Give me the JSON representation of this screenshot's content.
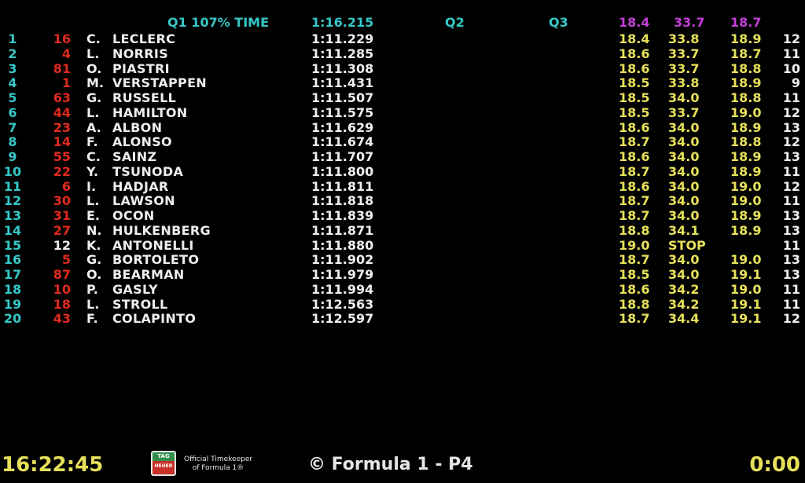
{
  "header": {
    "q1_label": "Q1 107% TIME",
    "q1_time": "1:16.215",
    "q2_label": "Q2",
    "q3_label": "Q3",
    "best_s1": "18.4",
    "best_s2": "33.7",
    "best_s3": "18.7"
  },
  "rows": [
    {
      "pos": "1",
      "num": "16",
      "ini": "C.",
      "name": "LECLERC",
      "time": "1:11.229",
      "s1": "18.4",
      "s2": "33.8",
      "s3": "18.9",
      "laps": "12",
      "num_color": "#e02a1e"
    },
    {
      "pos": "2",
      "num": "4",
      "ini": "L.",
      "name": "NORRIS",
      "time": "1:11.285",
      "s1": "18.6",
      "s2": "33.7",
      "s3": "18.7",
      "laps": "11",
      "num_color": "#e02a1e"
    },
    {
      "pos": "3",
      "num": "81",
      "ini": "O.",
      "name": "PIASTRI",
      "time": "1:11.308",
      "s1": "18.6",
      "s2": "33.7",
      "s3": "18.8",
      "laps": "10",
      "num_color": "#e02a1e"
    },
    {
      "pos": "4",
      "num": "1",
      "ini": "M.",
      "name": "VERSTAPPEN",
      "time": "1:11.431",
      "s1": "18.5",
      "s2": "33.8",
      "s3": "18.9",
      "laps": "9",
      "num_color": "#e02a1e"
    },
    {
      "pos": "5",
      "num": "63",
      "ini": "G.",
      "name": "RUSSELL",
      "time": "1:11.507",
      "s1": "18.5",
      "s2": "34.0",
      "s3": "18.8",
      "laps": "11",
      "num_color": "#e02a1e"
    },
    {
      "pos": "6",
      "num": "44",
      "ini": "L.",
      "name": "HAMILTON",
      "time": "1:11.575",
      "s1": "18.5",
      "s2": "33.7",
      "s3": "19.0",
      "laps": "12",
      "num_color": "#e02a1e"
    },
    {
      "pos": "7",
      "num": "23",
      "ini": "A.",
      "name": "ALBON",
      "time": "1:11.629",
      "s1": "18.6",
      "s2": "34.0",
      "s3": "18.9",
      "laps": "13",
      "num_color": "#e02a1e"
    },
    {
      "pos": "8",
      "num": "14",
      "ini": "F.",
      "name": "ALONSO",
      "time": "1:11.674",
      "s1": "18.7",
      "s2": "34.0",
      "s3": "18.8",
      "laps": "12",
      "num_color": "#e02a1e"
    },
    {
      "pos": "9",
      "num": "55",
      "ini": "C.",
      "name": "SAINZ",
      "time": "1:11.707",
      "s1": "18.6",
      "s2": "34.0",
      "s3": "18.9",
      "laps": "13",
      "num_color": "#e02a1e"
    },
    {
      "pos": "10",
      "num": "22",
      "ini": "Y.",
      "name": "TSUNODA",
      "time": "1:11.800",
      "s1": "18.7",
      "s2": "34.0",
      "s3": "18.9",
      "laps": "11",
      "num_color": "#e02a1e"
    },
    {
      "pos": "11",
      "num": "6",
      "ini": "I.",
      "name": "HADJAR",
      "time": "1:11.811",
      "s1": "18.6",
      "s2": "34.0",
      "s3": "19.0",
      "laps": "12",
      "num_color": "#e02a1e"
    },
    {
      "pos": "12",
      "num": "30",
      "ini": "L.",
      "name": "LAWSON",
      "time": "1:11.818",
      "s1": "18.7",
      "s2": "34.0",
      "s3": "19.0",
      "laps": "11",
      "num_color": "#e02a1e"
    },
    {
      "pos": "13",
      "num": "31",
      "ini": "E.",
      "name": "OCON",
      "time": "1:11.839",
      "s1": "18.7",
      "s2": "34.0",
      "s3": "18.9",
      "laps": "13",
      "num_color": "#e02a1e"
    },
    {
      "pos": "14",
      "num": "27",
      "ini": "N.",
      "name": "HULKENBERG",
      "time": "1:11.871",
      "s1": "18.8",
      "s2": "34.1",
      "s3": "18.9",
      "laps": "13",
      "num_color": "#e02a1e"
    },
    {
      "pos": "15",
      "num": "12",
      "ini": "K.",
      "name": "ANTONELLI",
      "time": "1:11.880",
      "s1": "19.0",
      "s2": "STOP",
      "s3": "",
      "laps": "11",
      "num_color": "#eeeeee"
    },
    {
      "pos": "16",
      "num": "5",
      "ini": "G.",
      "name": "BORTOLETO",
      "time": "1:11.902",
      "s1": "18.7",
      "s2": "34.0",
      "s3": "19.0",
      "laps": "13",
      "num_color": "#e02a1e"
    },
    {
      "pos": "17",
      "num": "87",
      "ini": "O.",
      "name": "BEARMAN",
      "time": "1:11.979",
      "s1": "18.5",
      "s2": "34.0",
      "s3": "19.1",
      "laps": "13",
      "num_color": "#e02a1e"
    },
    {
      "pos": "18",
      "num": "10",
      "ini": "P.",
      "name": "GASLY",
      "time": "1:11.994",
      "s1": "18.6",
      "s2": "34.2",
      "s3": "19.0",
      "laps": "11",
      "num_color": "#e02a1e"
    },
    {
      "pos": "19",
      "num": "18",
      "ini": "L.",
      "name": "STROLL",
      "time": "1:12.563",
      "s1": "18.8",
      "s2": "34.2",
      "s3": "19.1",
      "laps": "11",
      "num_color": "#e02a1e"
    },
    {
      "pos": "20",
      "num": "43",
      "ini": "F.",
      "name": "COLAPINTO",
      "time": "1:12.597",
      "s1": "18.7",
      "s2": "34.4",
      "s3": "19.1",
      "laps": "12",
      "num_color": "#e02a1e"
    }
  ],
  "footer": {
    "clock": "16:22:45",
    "timekeeper_line1": "Official Timekeeper",
    "timekeeper_line2": "of Formula 1®",
    "logo_text_top": "TAG",
    "logo_text_bottom": "HEUER",
    "session": "© Formula 1 - P4",
    "remaining": "0:00"
  },
  "colors": {
    "background": "#000000",
    "position": "#35c8c8",
    "car_number": "#e02a1e",
    "sector": "#e6e05a",
    "best_sector": "#c23ed6",
    "text": "#eeeeee"
  }
}
